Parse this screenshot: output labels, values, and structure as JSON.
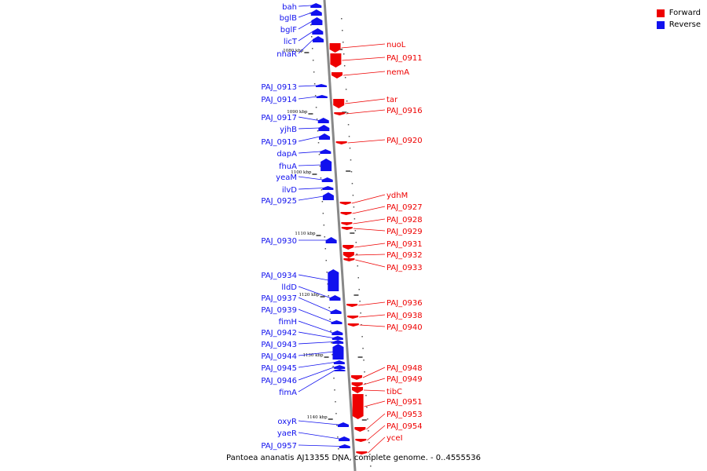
{
  "colors": {
    "forward": "#ee0000",
    "reverse": "#1111ee",
    "backbone": "#888888",
    "tick": "#000000"
  },
  "legend": {
    "forward": "Forward",
    "reverse": "Reverse"
  },
  "caption": "Pantoea ananatis AJ13355 DNA, complete genome. - 0..4555536",
  "scale_ticks": [
    {
      "label": "1080 kbp"
    },
    {
      "label": "1090 kbp"
    },
    {
      "label": "1100 kbp"
    },
    {
      "label": "1110 kbp"
    },
    {
      "label": "1120 kbp"
    },
    {
      "label": "1130 kbp"
    },
    {
      "label": "1140 kbp"
    }
  ],
  "reverse_genes": [
    "bah",
    "bglB",
    "bglF",
    "licT",
    "nhaR",
    "PAJ_0913",
    "PAJ_0914",
    "PAJ_0917",
    "yjhB",
    "PAJ_0919",
    "dapA",
    "fhuA",
    "yeaM",
    "ilvD",
    "PAJ_0925",
    "PAJ_0930",
    "PAJ_0934",
    "lldD",
    "PAJ_0937",
    "PAJ_0939",
    "fimH",
    "PAJ_0942",
    "PAJ_0943",
    "PAJ_0944",
    "PAJ_0945",
    "PAJ_0946",
    "fimA",
    "oxyR",
    "yaeR",
    "PAJ_0957"
  ],
  "forward_genes": [
    "nuoL",
    "PAJ_0911",
    "nemA",
    "tar",
    "PAJ_0916",
    "PAJ_0920",
    "ydhM",
    "PAJ_0927",
    "PAJ_0928",
    "PAJ_0929",
    "PAJ_0931",
    "PAJ_0932",
    "PAJ_0933",
    "PAJ_0936",
    "PAJ_0938",
    "PAJ_0940",
    "PAJ_0948",
    "PAJ_0949",
    "tibC",
    "PAJ_0951",
    "PAJ_0953",
    "PAJ_0954",
    "yceI"
  ]
}
